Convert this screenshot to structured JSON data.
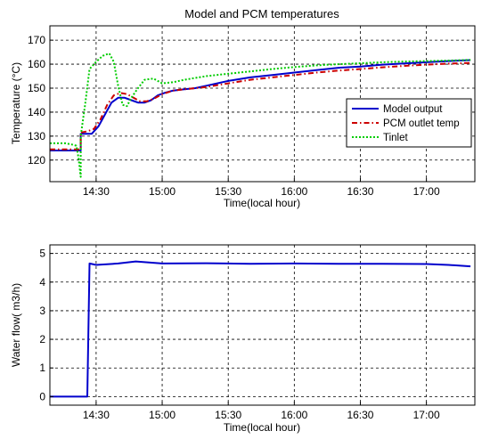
{
  "chart_data": [
    {
      "type": "line",
      "title": "Model and PCM temperatures",
      "xlabel": "Time(local hour)",
      "ylabel": "Temperature (°C)",
      "xticks": [
        "14:30",
        "15:00",
        "15:30",
        "16:00",
        "16:30",
        "17:00"
      ],
      "yticks": [
        "120",
        "130",
        "140",
        "150",
        "160",
        "170"
      ],
      "xlim": [
        "14:09",
        "17:22"
      ],
      "ylim": [
        111,
        176
      ],
      "grid": true,
      "legend_position": "center-right",
      "series": [
        {
          "name": "Model output",
          "color": "#0000cc",
          "style": "solid",
          "x": [
            "14:09",
            "14:23",
            "14:23",
            "14:25",
            "14:28",
            "14:31",
            "14:34",
            "14:37",
            "14:40",
            "14:43",
            "14:46",
            "14:49",
            "14:52",
            "14:55",
            "14:58",
            "15:01",
            "15:05",
            "15:10",
            "15:15",
            "15:20",
            "15:25",
            "15:30",
            "15:40",
            "15:50",
            "16:00",
            "16:10",
            "16:20",
            "16:30",
            "16:40",
            "16:50",
            "17:00",
            "17:10",
            "17:20"
          ],
          "y": [
            124,
            124,
            131,
            131,
            131,
            134,
            139,
            144,
            146,
            146,
            145,
            144,
            144,
            145,
            147,
            148,
            149,
            149.5,
            150,
            151,
            152,
            153,
            154.5,
            155.5,
            156.5,
            157.5,
            158.5,
            159,
            159.8,
            160.3,
            160.8,
            161.3,
            161.7
          ]
        },
        {
          "name": "PCM outlet temp",
          "color": "#cc0000",
          "style": "dash-dot",
          "x": [
            "14:09",
            "14:23",
            "14:23",
            "14:26",
            "14:29",
            "14:32",
            "14:35",
            "14:38",
            "14:41",
            "14:44",
            "14:47",
            "14:50",
            "14:53",
            "14:56",
            "15:00",
            "15:05",
            "15:10",
            "15:20",
            "15:30",
            "15:40",
            "15:50",
            "16:00",
            "16:10",
            "16:20",
            "16:30",
            "16:40",
            "16:50",
            "17:00",
            "17:10",
            "17:20"
          ],
          "y": [
            124.5,
            124.5,
            131.5,
            132,
            133,
            137,
            143,
            147,
            148,
            147.5,
            146,
            144.5,
            144.5,
            145.5,
            147.5,
            149,
            149.5,
            150.5,
            152,
            153.5,
            154.5,
            155.5,
            156.5,
            157.3,
            158,
            158.7,
            159.3,
            159.8,
            160.2,
            160.5
          ]
        },
        {
          "name": "Tinlet",
          "color": "#00cc00",
          "style": "dotted",
          "x": [
            "14:09",
            "14:16",
            "14:19",
            "14:21",
            "14:22",
            "14:23",
            "14:23",
            "14:25",
            "14:27",
            "14:30",
            "14:33",
            "14:36",
            "14:38",
            "14:40",
            "14:42",
            "14:44",
            "14:46",
            "14:49",
            "14:52",
            "14:56",
            "15:00",
            "15:05",
            "15:10",
            "15:20",
            "15:30",
            "15:40",
            "15:50",
            "16:00",
            "16:10",
            "16:20",
            "16:30",
            "16:40",
            "16:50",
            "17:00",
            "17:10",
            "17:20"
          ],
          "y": [
            127,
            127,
            126.5,
            126,
            121,
            113,
            130,
            143,
            158,
            161,
            163.5,
            164.5,
            161,
            151,
            143,
            142.5,
            146,
            150,
            153.5,
            154,
            152,
            152.5,
            153.5,
            155,
            156,
            157,
            158,
            158.8,
            159.5,
            160,
            160.4,
            160.8,
            161.1,
            161.3,
            161.5,
            161.8
          ]
        }
      ]
    },
    {
      "type": "line",
      "title": "",
      "xlabel": "Time(local hour)",
      "ylabel": "Water flow( m3/h)",
      "xticks": [
        "14:30",
        "15:00",
        "15:30",
        "16:00",
        "16:30",
        "17:00"
      ],
      "yticks": [
        "0",
        "1",
        "2",
        "3",
        "4",
        "5"
      ],
      "xlim": [
        "14:09",
        "17:22"
      ],
      "ylim": [
        -0.3,
        5.3
      ],
      "grid": true,
      "series": [
        {
          "name": "",
          "color": "#0000cc",
          "style": "solid",
          "x": [
            "14:09",
            "14:26",
            "14:27",
            "14:30",
            "14:40",
            "14:48",
            "15:00",
            "15:20",
            "15:40",
            "16:00",
            "16:20",
            "16:40",
            "17:00",
            "17:10",
            "17:20"
          ],
          "y": [
            0,
            0,
            4.65,
            4.6,
            4.65,
            4.72,
            4.65,
            4.66,
            4.64,
            4.65,
            4.64,
            4.64,
            4.63,
            4.6,
            4.55
          ]
        }
      ]
    }
  ]
}
